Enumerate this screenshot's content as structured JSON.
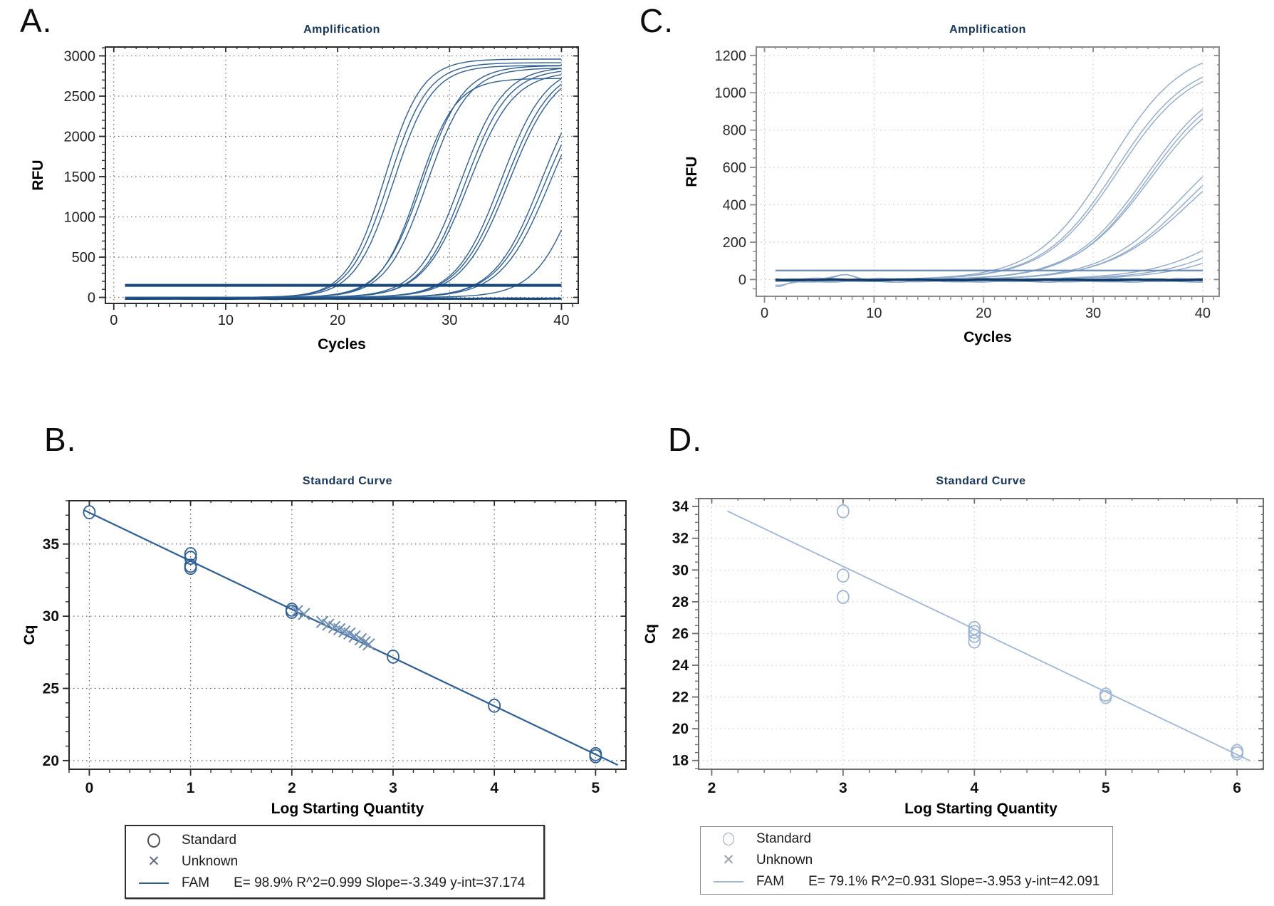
{
  "figure": {
    "background": "#ffffff"
  },
  "panels": [
    {
      "letter": "A."
    },
    {
      "letter": "B."
    },
    {
      "letter": "C."
    },
    {
      "letter": "D."
    }
  ],
  "chart_data": [
    {
      "panel": "A",
      "type": "line",
      "title": "Amplification",
      "xlabel": "Cycles",
      "ylabel": "RFU",
      "xlim": [
        -0.75,
        41.5
      ],
      "ylim": [
        -75,
        3110
      ],
      "xticks": [
        0,
        10,
        20,
        30,
        40
      ],
      "yticks": [
        0,
        500,
        1000,
        1500,
        2000,
        2500,
        3000
      ],
      "x_minor": 1,
      "y_minor": 100,
      "grid": true,
      "threshold_rfu": 150,
      "colors": {
        "curve": "#2d5f93",
        "dark": "#17497e",
        "frame": "#2b2b2b",
        "grid": "#6f6f6f",
        "text": "#1f1f1f",
        "title": "#17365c"
      },
      "tick_weight": 400,
      "curves": [
        {
          "m": 24.2,
          "a": 2960,
          "k": 0.6
        },
        {
          "m": 24.6,
          "a": 2915,
          "k": 0.58
        },
        {
          "m": 25.0,
          "a": 2880,
          "k": 0.58
        },
        {
          "m": 27.2,
          "a": 2720,
          "k": 0.6
        },
        {
          "m": 27.6,
          "a": 2880,
          "k": 0.55
        },
        {
          "m": 28.0,
          "a": 2850,
          "k": 0.55
        },
        {
          "m": 31.0,
          "a": 2870,
          "k": 0.52
        },
        {
          "m": 31.4,
          "a": 2840,
          "k": 0.52
        },
        {
          "m": 31.7,
          "a": 2810,
          "k": 0.5
        },
        {
          "m": 34.6,
          "a": 2900,
          "k": 0.5
        },
        {
          "m": 35.0,
          "a": 2890,
          "k": 0.48
        },
        {
          "m": 35.3,
          "a": 2870,
          "k": 0.48
        },
        {
          "m": 38.2,
          "a": 2900,
          "k": 0.48
        },
        {
          "m": 38.6,
          "a": 2890,
          "k": 0.46
        },
        {
          "m": 39.0,
          "a": 2880,
          "k": 0.46
        },
        {
          "m": 41.8,
          "a": 2900,
          "k": 0.5
        },
        {
          "flat": true,
          "base": -15,
          "noise": 5,
          "seed": 1
        },
        {
          "flat": true,
          "base": -22,
          "noise": 4,
          "seed": 2
        },
        {
          "flat": true,
          "base": -10,
          "noise": 3,
          "seed": 3
        },
        {
          "flat": true,
          "base": -16,
          "noise": 2,
          "seed": 4,
          "w": 3,
          "dark": true
        }
      ]
    },
    {
      "panel": "B",
      "type": "scatter",
      "title": "Standard Curve",
      "xlabel": "Log Starting Quantity",
      "ylabel": "Cq",
      "xlim": [
        -0.2,
        5.3
      ],
      "ylim": [
        19.4,
        38.0
      ],
      "xticks": [
        0,
        1,
        2,
        3,
        4,
        5
      ],
      "yticks": [
        20,
        25,
        30,
        35
      ],
      "x_minor": 0.2,
      "y_minor": 1,
      "grid": true,
      "colors": {
        "marker": "#2d6097",
        "unknown": "#6d8cb2",
        "fit": "#2d6097",
        "frame": "#2b2b2b",
        "grid": "#5f5f5f",
        "text": "#111111",
        "title": "#17365c"
      },
      "tick_weight": 700,
      "standards": [
        [
          0,
          37.2
        ],
        [
          1,
          34.3
        ],
        [
          1,
          34.05
        ],
        [
          1,
          33.5
        ],
        [
          1,
          33.35
        ],
        [
          2,
          30.45
        ],
        [
          2,
          30.3
        ],
        [
          3,
          27.2
        ],
        [
          4,
          23.8
        ],
        [
          5,
          20.45
        ],
        [
          5,
          20.3
        ]
      ],
      "unknowns": [
        [
          2.05,
          30.35
        ],
        [
          2.12,
          30.15
        ],
        [
          2.3,
          29.6
        ],
        [
          2.36,
          29.42
        ],
        [
          2.42,
          29.25
        ],
        [
          2.47,
          29.1
        ],
        [
          2.52,
          28.95
        ],
        [
          2.57,
          28.8
        ],
        [
          2.62,
          28.6
        ],
        [
          2.68,
          28.4
        ],
        [
          2.72,
          28.2
        ],
        [
          2.76,
          28.05
        ]
      ],
      "fit": {
        "fluorophore": "FAM",
        "efficiency_pct": 98.9,
        "r_squared": 0.999,
        "slope": -3.349,
        "y_intercept": 37.174,
        "x_start": -0.05,
        "x_end": 5.22,
        "width": 2.2
      },
      "legend": [
        {
          "marker": "circle",
          "label": "Standard"
        },
        {
          "marker": "x",
          "label": "Unknown"
        },
        {
          "marker": "line",
          "label": "FAM",
          "stats": "E= 98.9% R^2=0.999 Slope=-3.349 y-int=37.174"
        }
      ]
    },
    {
      "panel": "C",
      "type": "line",
      "title": "Amplification",
      "xlabel": "Cycles",
      "ylabel": "RFU",
      "xlim": [
        -0.75,
        41.5
      ],
      "ylim": [
        -90,
        1245
      ],
      "xticks": [
        0,
        10,
        20,
        30,
        40
      ],
      "yticks": [
        0,
        200,
        400,
        600,
        800,
        1000,
        1200
      ],
      "x_minor": 1,
      "y_minor": 50,
      "grid": true,
      "threshold_rfu": 48,
      "colors": {
        "curve": "#8fa9cc",
        "dark": "#123a66",
        "threshold": "#6d8fba",
        "frame": "#8a8a8a",
        "grid": "#c8c8c8",
        "text": "#2a2a2a",
        "title": "#17365c"
      },
      "tick_weight": 400,
      "curves": [
        {
          "m": 31.5,
          "a": 1250,
          "k": 0.3
        },
        {
          "m": 32.1,
          "a": 1185,
          "k": 0.3
        },
        {
          "m": 32.3,
          "a": 1165,
          "k": 0.3
        },
        {
          "m": 34.8,
          "a": 1105,
          "k": 0.3
        },
        {
          "m": 35.0,
          "a": 1085,
          "k": 0.3
        },
        {
          "m": 35.2,
          "a": 1075,
          "k": 0.29
        },
        {
          "m": 38.0,
          "a": 865,
          "k": 0.28
        },
        {
          "m": 38.4,
          "a": 825,
          "k": 0.28
        },
        {
          "m": 38.7,
          "a": 805,
          "k": 0.27
        },
        {
          "m": 45.0,
          "a": 700,
          "k": 0.25
        },
        {
          "m": 46.5,
          "a": 700,
          "k": 0.25
        },
        {
          "m": 47.5,
          "a": 650,
          "k": 0.25
        },
        {
          "flat": true,
          "base": -4,
          "noise": 8,
          "seed": 1,
          "dip": true
        },
        {
          "flat": true,
          "base": 2,
          "noise": 6,
          "seed": 2,
          "bump": true
        },
        {
          "flat": true,
          "base": -10,
          "noise": 5,
          "seed": 3,
          "dip": true
        },
        {
          "flat": true,
          "base": -6,
          "noise": 4,
          "seed": 5
        },
        {
          "flat": true,
          "base": 0,
          "noise": 5,
          "seed": 7,
          "bump": true
        },
        {
          "flat": true,
          "base": -12,
          "noise": 3,
          "seed": 6
        },
        {
          "flat": true,
          "base": -2,
          "noise": 2,
          "seed": 4,
          "w": 3.5,
          "dark": true
        }
      ]
    },
    {
      "panel": "D",
      "type": "scatter",
      "title": "Standard Curve",
      "xlabel": "Log Starting Quantity",
      "ylabel": "Cq",
      "xlim": [
        1.9,
        6.2
      ],
      "ylim": [
        17.45,
        34.5
      ],
      "xticks": [
        2,
        3,
        4,
        5,
        6
      ],
      "yticks": [
        18,
        20,
        22,
        24,
        26,
        28,
        30,
        32,
        34
      ],
      "x_minor": 0.2,
      "y_minor": 0.5,
      "grid": true,
      "colors": {
        "marker": "#9db7d8",
        "unknown": "#9db7d8",
        "fit": "#9db7d8",
        "frame": "#6e6e6e",
        "grid": "#cccccc",
        "text": "#111111",
        "title": "#17365c"
      },
      "tick_weight": 700,
      "standards": [
        [
          3,
          33.7
        ],
        [
          3,
          29.65
        ],
        [
          3,
          28.3
        ],
        [
          4,
          26.35
        ],
        [
          4,
          26.1
        ],
        [
          4,
          25.85
        ],
        [
          4,
          25.5
        ],
        [
          5,
          22.15
        ],
        [
          5,
          22.0
        ],
        [
          6,
          18.6
        ],
        [
          6,
          18.45
        ]
      ],
      "unknowns": [],
      "fit": {
        "fluorophore": "FAM",
        "efficiency_pct": 79.1,
        "r_squared": 0.931,
        "slope": -3.953,
        "y_intercept": 42.091,
        "x_start": 2.12,
        "x_end": 6.1,
        "width": 1.8
      },
      "legend": [
        {
          "marker": "circle",
          "label": "Standard"
        },
        {
          "marker": "x",
          "label": "Unknown"
        },
        {
          "marker": "line",
          "label": "FAM",
          "stats": "E= 79.1% R^2=0.931 Slope=-3.953 y-int=42.091"
        }
      ]
    }
  ]
}
